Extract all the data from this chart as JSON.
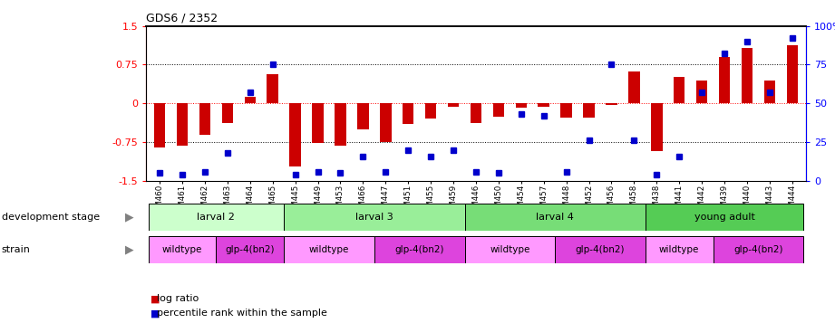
{
  "title": "GDS6 / 2352",
  "samples": [
    "GSM460",
    "GSM461",
    "GSM462",
    "GSM463",
    "GSM464",
    "GSM465",
    "GSM445",
    "GSM449",
    "GSM453",
    "GSM466",
    "GSM447",
    "GSM451",
    "GSM455",
    "GSM459",
    "GSM446",
    "GSM450",
    "GSM454",
    "GSM457",
    "GSM448",
    "GSM452",
    "GSM456",
    "GSM458",
    "GSM438",
    "GSM441",
    "GSM442",
    "GSM439",
    "GSM440",
    "GSM443",
    "GSM444"
  ],
  "log_ratio": [
    -0.85,
    -0.82,
    -0.6,
    -0.38,
    0.13,
    0.56,
    -1.22,
    -0.76,
    -0.82,
    -0.5,
    -0.74,
    -0.4,
    -0.3,
    -0.07,
    -0.38,
    -0.25,
    -0.09,
    -0.07,
    -0.28,
    -0.28,
    -0.03,
    0.62,
    -0.92,
    0.52,
    0.44,
    0.9,
    1.08,
    0.44,
    1.12
  ],
  "percentile": [
    5,
    4,
    6,
    18,
    57,
    75,
    4,
    6,
    5,
    16,
    6,
    20,
    16,
    20,
    6,
    5,
    43,
    42,
    6,
    26,
    75,
    26,
    4,
    16,
    57,
    82,
    90,
    57,
    92
  ],
  "bar_color": "#cc0000",
  "dot_color": "#0000cc",
  "left_yticks": [
    -1.5,
    -0.75,
    0.0,
    0.75,
    1.5
  ],
  "left_yticklabels": [
    "-1.5",
    "-0.75",
    "0",
    "0.75",
    "1.5"
  ],
  "right_yticks": [
    0,
    25,
    50,
    75,
    100
  ],
  "right_yticklabels": [
    "0",
    "25",
    "50",
    "75",
    "100%"
  ],
  "dev_stage_groups": [
    {
      "label": "larval 2",
      "start": 0,
      "end": 5,
      "color": "#ccffcc"
    },
    {
      "label": "larval 3",
      "start": 6,
      "end": 13,
      "color": "#99ee99"
    },
    {
      "label": "larval 4",
      "start": 14,
      "end": 21,
      "color": "#77dd77"
    },
    {
      "label": "young adult",
      "start": 22,
      "end": 28,
      "color": "#55cc55"
    }
  ],
  "strain_groups": [
    {
      "label": "wildtype",
      "start": 0,
      "end": 2,
      "color": "#ff99ff"
    },
    {
      "label": "glp-4(bn2)",
      "start": 3,
      "end": 5,
      "color": "#dd44dd"
    },
    {
      "label": "wildtype",
      "start": 6,
      "end": 9,
      "color": "#ff99ff"
    },
    {
      "label": "glp-4(bn2)",
      "start": 10,
      "end": 13,
      "color": "#dd44dd"
    },
    {
      "label": "wildtype",
      "start": 14,
      "end": 17,
      "color": "#ff99ff"
    },
    {
      "label": "glp-4(bn2)",
      "start": 18,
      "end": 21,
      "color": "#dd44dd"
    },
    {
      "label": "wildtype",
      "start": 22,
      "end": 24,
      "color": "#ff99ff"
    },
    {
      "label": "glp-4(bn2)",
      "start": 25,
      "end": 28,
      "color": "#dd44dd"
    }
  ],
  "dev_stage_label": "development stage",
  "strain_label": "strain",
  "legend_bar_label": "log ratio",
  "legend_dot_label": "percentile rank within the sample",
  "bar_width": 0.5,
  "dot_size": 5,
  "fig_width": 9.21,
  "fig_height": 3.57,
  "dpi": 100
}
